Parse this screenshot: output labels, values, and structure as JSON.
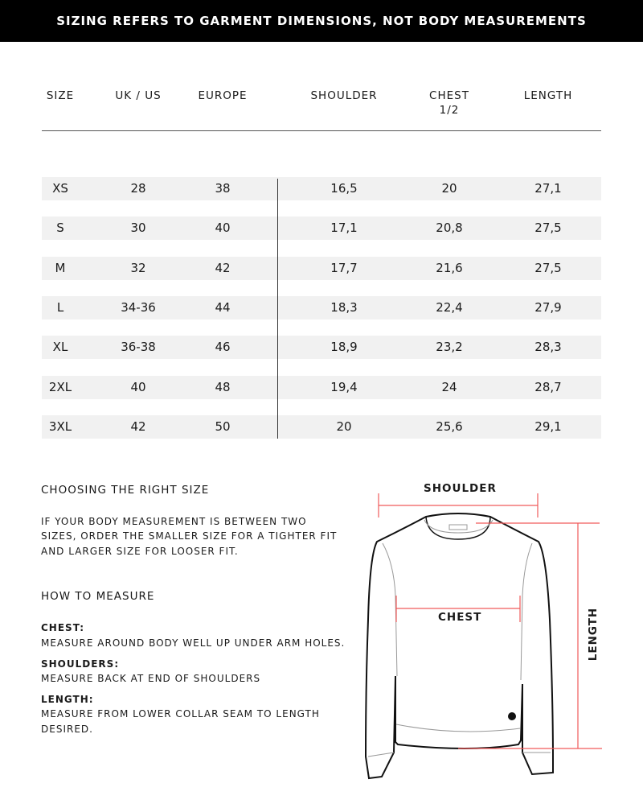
{
  "banner": "SIZING REFERS TO GARMENT DIMENSIONS, NOT BODY MEASUREMENTS",
  "columns": [
    "SIZE",
    "UK / US",
    "EUROPE",
    "SHOULDER",
    "CHEST\n1/2",
    "LENGTH"
  ],
  "rows": [
    [
      "XS",
      "28",
      "38",
      "16,5",
      "20",
      "27,1"
    ],
    [
      "S",
      "30",
      "40",
      "17,1",
      "20,8",
      "27,5"
    ],
    [
      "M",
      "32",
      "42",
      "17,7",
      "21,6",
      "27,5"
    ],
    [
      "L",
      "34-36",
      "44",
      "18,3",
      "22,4",
      "27,9"
    ],
    [
      "XL",
      "36-38",
      "46",
      "18,9",
      "23,2",
      "28,3"
    ],
    [
      "2XL",
      "40",
      "48",
      "19,4",
      "24",
      "28,7"
    ],
    [
      "3XL",
      "42",
      "50",
      "20",
      "25,6",
      "29,1"
    ]
  ],
  "guide": {
    "choosing_title": "CHOOSING THE RIGHT SIZE",
    "choosing_text": [
      "IF YOUR BODY MEASUREMENT IS BETWEEN TWO",
      "SIZES, ORDER THE SMALLER SIZE FOR A TIGHTER FIT",
      "AND LARGER SIZE FOR LOOSER FIT."
    ],
    "measure_title": "HOW TO MEASURE",
    "chest_label": "CHEST:",
    "chest_text": "MEASURE AROUND BODY WELL UP UNDER ARM HOLES.",
    "shoulders_label": "SHOULDERS:",
    "shoulders_text": "MEASURE BACK AT END OF SHOULDERS",
    "length_label": "LENGTH:",
    "length_text": [
      "MEASURE FROM LOWER COLLAR SEAM TO LENGTH",
      "DESIRED."
    ]
  },
  "diagram": {
    "shoulder": "SHOULDER",
    "chest": "CHEST",
    "length": "LENGTH",
    "line_color": "#f05a5a"
  }
}
